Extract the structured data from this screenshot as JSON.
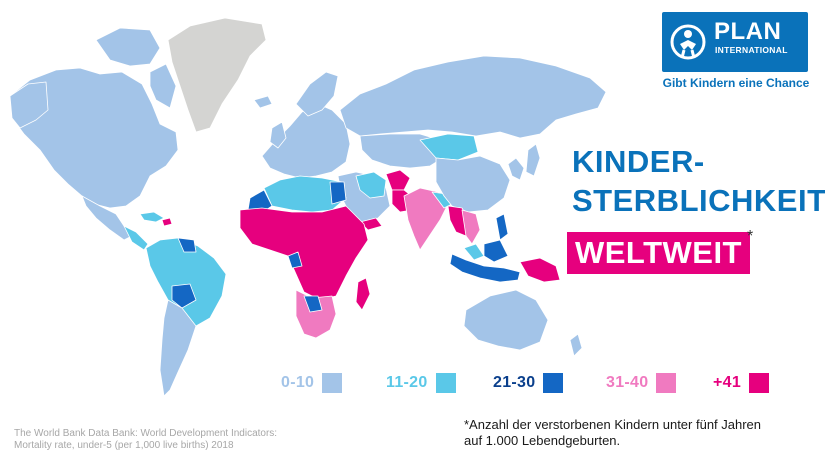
{
  "brand": {
    "name": "PLAN",
    "subname": "INTERNATIONAL",
    "tagline": "Gibt Kindern eine Chance"
  },
  "title": {
    "line1": "KINDER-",
    "line2": "STERBLICHKEIT",
    "highlight": "WELTWEIT",
    "asterisk": "*"
  },
  "legend": [
    {
      "label": "0-10",
      "color": "#a3c4e8",
      "text_color": "#a3c4e8"
    },
    {
      "label": "11-20",
      "color": "#5ac8e8",
      "text_color": "#5ac8e8"
    },
    {
      "label": "21-30",
      "color": "#1467c4",
      "text_color": "#0a3f8c"
    },
    {
      "label": "31-40",
      "color": "#f07ac0",
      "text_color": "#f07ac0"
    },
    {
      "label": "+41",
      "color": "#e6007e",
      "text_color": "#e6007e"
    }
  ],
  "colors": {
    "brand_blue": "#0a72ba",
    "brand_pink": "#e6007e",
    "no_data": "#d4d4d2"
  },
  "source": {
    "line1": "The World Bank Data Bank: World Development Indicators:",
    "line2": "Mortality rate, under-5 (per 1,000 live births) 2018"
  },
  "footnote": {
    "line1": "*Anzahl der verstorbenen Kindern unter fünf Jahren",
    "line2": "auf 1.000 Lebendgeburten."
  }
}
